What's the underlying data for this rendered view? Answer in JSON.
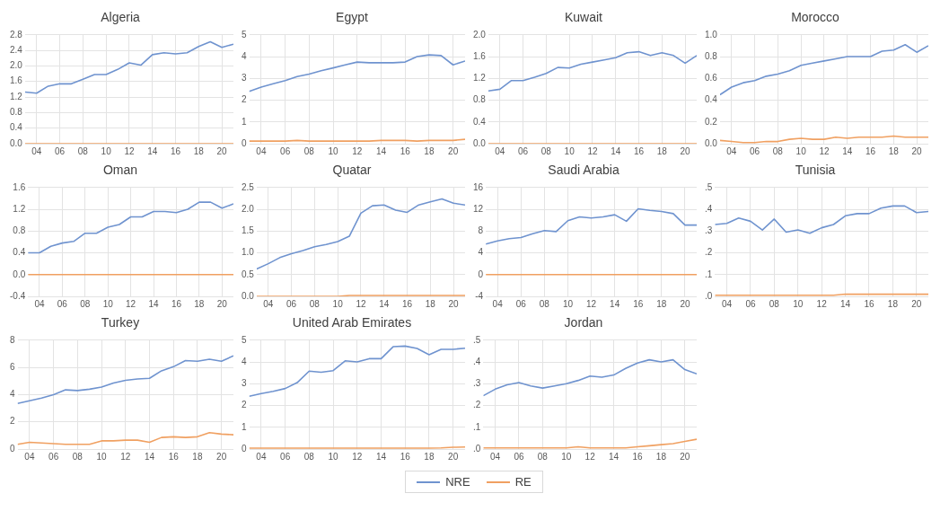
{
  "chart_data": [
    {
      "type": "line",
      "title": "Algeria",
      "x": [
        3,
        4,
        5,
        6,
        7,
        8,
        9,
        10,
        11,
        12,
        13,
        14,
        15,
        16,
        17,
        18,
        19,
        20,
        21
      ],
      "xlim": [
        3,
        21
      ],
      "xticks": [
        {
          "value": 4,
          "label": "04"
        },
        {
          "value": 6,
          "label": "06"
        },
        {
          "value": 8,
          "label": "08"
        },
        {
          "value": 10,
          "label": "10"
        },
        {
          "value": 12,
          "label": "12"
        },
        {
          "value": 14,
          "label": "14"
        },
        {
          "value": 16,
          "label": "16"
        },
        {
          "value": 18,
          "label": "18"
        },
        {
          "value": 20,
          "label": "20"
        }
      ],
      "ylim": [
        0,
        2.8
      ],
      "yticks": [
        {
          "value": 0,
          "label": "0.0"
        },
        {
          "value": 0.4,
          "label": "0.4"
        },
        {
          "value": 0.8,
          "label": "0.8"
        },
        {
          "value": 1.2,
          "label": "1.2"
        },
        {
          "value": 1.6,
          "label": "1.6"
        },
        {
          "value": 2,
          "label": "2.0"
        },
        {
          "value": 2.4,
          "label": "2.4"
        },
        {
          "value": 2.8,
          "label": "2.8"
        }
      ],
      "grid": true,
      "marker": "none",
      "line_style": "solid",
      "legend": "bottom",
      "series": [
        {
          "name": "NRE",
          "color": "#6f93cf",
          "values": [
            1.33,
            1.3,
            1.48,
            1.54,
            1.54,
            1.66,
            1.78,
            1.78,
            1.91,
            2.08,
            2.02,
            2.29,
            2.34,
            2.31,
            2.34,
            2.5,
            2.62,
            2.48,
            2.56
          ]
        },
        {
          "name": "RE",
          "color": "#f0a061",
          "values": [
            0,
            0,
            0,
            0,
            0,
            0,
            0,
            0,
            0,
            0,
            0,
            0,
            0,
            0,
            0,
            0,
            0,
            0,
            0
          ]
        }
      ]
    },
    {
      "type": "line",
      "title": "Egypt",
      "x": [
        3,
        4,
        5,
        6,
        7,
        8,
        9,
        10,
        11,
        12,
        13,
        14,
        15,
        16,
        17,
        18,
        19,
        20,
        21
      ],
      "xlim": [
        3,
        21
      ],
      "xticks": [
        {
          "value": 4,
          "label": "04"
        },
        {
          "value": 6,
          "label": "06"
        },
        {
          "value": 8,
          "label": "08"
        },
        {
          "value": 10,
          "label": "10"
        },
        {
          "value": 12,
          "label": "12"
        },
        {
          "value": 14,
          "label": "14"
        },
        {
          "value": 16,
          "label": "16"
        },
        {
          "value": 18,
          "label": "18"
        },
        {
          "value": 20,
          "label": "20"
        }
      ],
      "ylim": [
        0,
        5
      ],
      "yticks": [
        0,
        1,
        2,
        3,
        4,
        5
      ],
      "grid": true,
      "marker": "none",
      "line_style": "solid",
      "series": [
        {
          "color": "#6f93cf",
          "values": [
            2.4,
            2.6,
            2.75,
            2.9,
            3.08,
            3.2,
            3.35,
            3.48,
            3.62,
            3.75,
            3.72,
            3.72,
            3.72,
            3.75,
            4.0,
            4.08,
            4.05,
            3.62,
            3.8
          ]
        },
        {
          "color": "#f0a061",
          "values": [
            0.12,
            0.12,
            0.12,
            0.12,
            0.15,
            0.12,
            0.12,
            0.12,
            0.12,
            0.12,
            0.12,
            0.15,
            0.15,
            0.15,
            0.12,
            0.15,
            0.15,
            0.15,
            0.2
          ]
        }
      ]
    },
    {
      "type": "line",
      "title": "Kuwait",
      "x": [
        3,
        4,
        5,
        6,
        7,
        8,
        9,
        10,
        11,
        12,
        13,
        14,
        15,
        16,
        17,
        18,
        19,
        20,
        21
      ],
      "xlim": [
        3,
        21
      ],
      "xticks": [
        {
          "value": 4,
          "label": "04"
        },
        {
          "value": 6,
          "label": "06"
        },
        {
          "value": 8,
          "label": "08"
        },
        {
          "value": 10,
          "label": "10"
        },
        {
          "value": 12,
          "label": "12"
        },
        {
          "value": 14,
          "label": "14"
        },
        {
          "value": 16,
          "label": "16"
        },
        {
          "value": 18,
          "label": "18"
        },
        {
          "value": 20,
          "label": "20"
        }
      ],
      "ylim": [
        0,
        2
      ],
      "yticks": [
        {
          "value": 0,
          "label": "0.0"
        },
        {
          "value": 0.4,
          "label": "0.4"
        },
        {
          "value": 0.8,
          "label": "0.8"
        },
        {
          "value": 1.2,
          "label": "1.2"
        },
        {
          "value": 1.6,
          "label": "1.6"
        },
        {
          "value": 2,
          "label": "2.0"
        }
      ],
      "grid": true,
      "marker": "none",
      "line_style": "solid",
      "series": [
        {
          "color": "#6f93cf",
          "values": [
            0.97,
            1.0,
            1.16,
            1.16,
            1.22,
            1.29,
            1.4,
            1.39,
            1.46,
            1.5,
            1.54,
            1.58,
            1.67,
            1.69,
            1.62,
            1.67,
            1.62,
            1.48,
            1.62
          ]
        },
        {
          "color": "#f0a061",
          "values": [
            0,
            0,
            0,
            0,
            0,
            0,
            0,
            0,
            0,
            0,
            0,
            0,
            0,
            0,
            0,
            0,
            0,
            0,
            0
          ]
        }
      ]
    },
    {
      "type": "line",
      "title": "Morocco",
      "x": [
        3,
        4,
        5,
        6,
        7,
        8,
        9,
        10,
        11,
        12,
        13,
        14,
        15,
        16,
        17,
        18,
        19,
        20,
        21
      ],
      "xlim": [
        3,
        21
      ],
      "xticks": [
        {
          "value": 4,
          "label": "04"
        },
        {
          "value": 6,
          "label": "06"
        },
        {
          "value": 8,
          "label": "08"
        },
        {
          "value": 10,
          "label": "10"
        },
        {
          "value": 12,
          "label": "12"
        },
        {
          "value": 14,
          "label": "14"
        },
        {
          "value": 16,
          "label": "16"
        },
        {
          "value": 18,
          "label": "18"
        },
        {
          "value": 20,
          "label": "20"
        }
      ],
      "ylim": [
        0,
        1
      ],
      "yticks": [
        {
          "value": 0,
          "label": "0.0"
        },
        {
          "value": 0.2,
          "label": "0.2"
        },
        {
          "value": 0.4,
          "label": "0.4"
        },
        {
          "value": 0.6,
          "label": "0.6"
        },
        {
          "value": 0.8,
          "label": "0.8"
        },
        {
          "value": 1,
          "label": "1.0"
        }
      ],
      "grid": true,
      "marker": "none",
      "line_style": "solid",
      "series": [
        {
          "color": "#6f93cf",
          "values": [
            0.45,
            0.52,
            0.56,
            0.58,
            0.62,
            0.64,
            0.67,
            0.72,
            0.74,
            0.76,
            0.78,
            0.8,
            0.8,
            0.8,
            0.85,
            0.86,
            0.91,
            0.84,
            0.9
          ]
        },
        {
          "color": "#f0a061",
          "values": [
            0.03,
            0.02,
            0.01,
            0.01,
            0.02,
            0.02,
            0.04,
            0.05,
            0.04,
            0.04,
            0.06,
            0.05,
            0.06,
            0.06,
            0.06,
            0.07,
            0.06,
            0.06,
            0.06
          ]
        }
      ]
    },
    {
      "type": "line",
      "title": "Oman",
      "x": [
        3,
        4,
        5,
        6,
        7,
        8,
        9,
        10,
        11,
        12,
        13,
        14,
        15,
        16,
        17,
        18,
        19,
        20,
        21
      ],
      "xlim": [
        3,
        21
      ],
      "xticks": [
        {
          "value": 4,
          "label": "04"
        },
        {
          "value": 6,
          "label": "06"
        },
        {
          "value": 8,
          "label": "08"
        },
        {
          "value": 10,
          "label": "10"
        },
        {
          "value": 12,
          "label": "12"
        },
        {
          "value": 14,
          "label": "14"
        },
        {
          "value": 16,
          "label": "16"
        },
        {
          "value": 18,
          "label": "18"
        },
        {
          "value": 20,
          "label": "20"
        }
      ],
      "ylim": [
        -0.4,
        1.6
      ],
      "yticks": [
        {
          "value": -0.4,
          "label": "-0.4"
        },
        {
          "value": 0,
          "label": "0.0"
        },
        {
          "value": 0.4,
          "label": "0.4"
        },
        {
          "value": 0.8,
          "label": "0.8"
        },
        {
          "value": 1.2,
          "label": "1.2"
        },
        {
          "value": 1.6,
          "label": "1.6"
        }
      ],
      "grid": true,
      "marker": "none",
      "line_style": "solid",
      "series": [
        {
          "color": "#6f93cf",
          "values": [
            0.4,
            0.4,
            0.52,
            0.58,
            0.61,
            0.76,
            0.76,
            0.87,
            0.92,
            1.06,
            1.06,
            1.16,
            1.16,
            1.14,
            1.2,
            1.33,
            1.33,
            1.22,
            1.3
          ]
        },
        {
          "color": "#f0a061",
          "values": [
            0,
            0,
            0,
            0,
            0,
            0,
            0,
            0,
            0,
            0,
            0,
            0,
            0,
            0,
            0,
            0,
            0,
            0,
            0
          ]
        }
      ]
    },
    {
      "type": "line",
      "title": "Quatar",
      "x": [
        3,
        4,
        5,
        6,
        7,
        8,
        9,
        10,
        11,
        12,
        13,
        14,
        15,
        16,
        17,
        18,
        19,
        20,
        21
      ],
      "xlim": [
        3,
        21
      ],
      "xticks": [
        {
          "value": 4,
          "label": "04"
        },
        {
          "value": 6,
          "label": "06"
        },
        {
          "value": 8,
          "label": "08"
        },
        {
          "value": 10,
          "label": "10"
        },
        {
          "value": 12,
          "label": "12"
        },
        {
          "value": 14,
          "label": "14"
        },
        {
          "value": 16,
          "label": "16"
        },
        {
          "value": 18,
          "label": "18"
        },
        {
          "value": 20,
          "label": "20"
        }
      ],
      "ylim": [
        0,
        2.5
      ],
      "yticks": [
        {
          "value": 0,
          "label": "0.0"
        },
        {
          "value": 0.5,
          "label": "0.5"
        },
        {
          "value": 1,
          "label": "1.0"
        },
        {
          "value": 1.5,
          "label": "1.5"
        },
        {
          "value": 2,
          "label": "2.0"
        },
        {
          "value": 2.5,
          "label": "2.5"
        }
      ],
      "grid": true,
      "marker": "none",
      "line_style": "solid",
      "series": [
        {
          "color": "#6f93cf",
          "values": [
            0.63,
            0.75,
            0.89,
            0.98,
            1.05,
            1.14,
            1.19,
            1.26,
            1.38,
            1.91,
            2.08,
            2.1,
            1.98,
            1.93,
            2.1,
            2.17,
            2.24,
            2.14,
            2.1
          ]
        },
        {
          "color": "#f0a061",
          "values": [
            0,
            0,
            0,
            0,
            0,
            0,
            0,
            0,
            0.02,
            0.02,
            0.02,
            0.02,
            0.02,
            0.02,
            0.02,
            0.02,
            0.02,
            0.02,
            0.02
          ]
        }
      ]
    },
    {
      "type": "line",
      "title": "Saudi Arabia",
      "x": [
        3,
        4,
        5,
        6,
        7,
        8,
        9,
        10,
        11,
        12,
        13,
        14,
        15,
        16,
        17,
        18,
        19,
        20,
        21
      ],
      "xlim": [
        3,
        21
      ],
      "xticks": [
        {
          "value": 4,
          "label": "04"
        },
        {
          "value": 6,
          "label": "06"
        },
        {
          "value": 8,
          "label": "08"
        },
        {
          "value": 10,
          "label": "10"
        },
        {
          "value": 12,
          "label": "12"
        },
        {
          "value": 14,
          "label": "14"
        },
        {
          "value": 16,
          "label": "16"
        },
        {
          "value": 18,
          "label": "18"
        },
        {
          "value": 20,
          "label": "20"
        }
      ],
      "ylim": [
        -4,
        16
      ],
      "yticks": [
        -4,
        0,
        4,
        8,
        12,
        16
      ],
      "grid": true,
      "marker": "none",
      "line_style": "solid",
      "series": [
        {
          "color": "#6f93cf",
          "values": [
            5.6,
            6.2,
            6.6,
            6.8,
            7.5,
            8.1,
            7.9,
            9.9,
            10.6,
            10.4,
            10.6,
            11.0,
            9.8,
            12.1,
            11.8,
            11.6,
            11.2,
            9.1,
            9.1
          ]
        },
        {
          "color": "#f0a061",
          "values": [
            0,
            0,
            0,
            0,
            0,
            0,
            0,
            0,
            0,
            0,
            0,
            0,
            0,
            0,
            0,
            0,
            0,
            0,
            0
          ]
        }
      ]
    },
    {
      "type": "line",
      "title": "Tunisia",
      "x": [
        3,
        4,
        5,
        6,
        7,
        8,
        9,
        10,
        11,
        12,
        13,
        14,
        15,
        16,
        17,
        18,
        19,
        20,
        21
      ],
      "xlim": [
        3,
        21
      ],
      "xticks": [
        {
          "value": 4,
          "label": "04"
        },
        {
          "value": 6,
          "label": "06"
        },
        {
          "value": 8,
          "label": "08"
        },
        {
          "value": 10,
          "label": "10"
        },
        {
          "value": 12,
          "label": "12"
        },
        {
          "value": 14,
          "label": "14"
        },
        {
          "value": 16,
          "label": "16"
        },
        {
          "value": 18,
          "label": "18"
        },
        {
          "value": 20,
          "label": "20"
        }
      ],
      "ylim": [
        0,
        0.5
      ],
      "yticks": [
        {
          "value": 0,
          "label": ".0"
        },
        {
          "value": 0.1,
          "label": ".1"
        },
        {
          "value": 0.2,
          "label": ".2"
        },
        {
          "value": 0.3,
          "label": ".3"
        },
        {
          "value": 0.4,
          "label": ".4"
        },
        {
          "value": 0.5,
          "label": ".5"
        }
      ],
      "grid": true,
      "marker": "none",
      "line_style": "solid",
      "series": [
        {
          "color": "#6f93cf",
          "values": [
            0.33,
            0.335,
            0.36,
            0.345,
            0.305,
            0.355,
            0.295,
            0.305,
            0.29,
            0.315,
            0.33,
            0.37,
            0.38,
            0.38,
            0.405,
            0.415,
            0.415,
            0.385,
            0.39
          ]
        },
        {
          "color": "#f0a061",
          "values": [
            0.005,
            0.005,
            0.005,
            0.005,
            0.005,
            0.005,
            0.005,
            0.005,
            0.005,
            0.005,
            0.005,
            0.01,
            0.01,
            0.01,
            0.01,
            0.01,
            0.01,
            0.01,
            0.01
          ]
        }
      ]
    },
    {
      "type": "line",
      "title": "Turkey",
      "x": [
        3,
        4,
        5,
        6,
        7,
        8,
        9,
        10,
        11,
        12,
        13,
        14,
        15,
        16,
        17,
        18,
        19,
        20,
        21
      ],
      "xlim": [
        3,
        21
      ],
      "xticks": [
        {
          "value": 4,
          "label": "04"
        },
        {
          "value": 6,
          "label": "06"
        },
        {
          "value": 8,
          "label": "08"
        },
        {
          "value": 10,
          "label": "10"
        },
        {
          "value": 12,
          "label": "12"
        },
        {
          "value": 14,
          "label": "14"
        },
        {
          "value": 16,
          "label": "16"
        },
        {
          "value": 18,
          "label": "18"
        },
        {
          "value": 20,
          "label": "20"
        }
      ],
      "ylim": [
        0,
        8
      ],
      "yticks": [
        0,
        2,
        4,
        6,
        8
      ],
      "grid": true,
      "marker": "none",
      "line_style": "solid",
      "series": [
        {
          "color": "#6f93cf",
          "values": [
            3.35,
            3.55,
            3.75,
            4.0,
            4.35,
            4.3,
            4.4,
            4.55,
            4.85,
            5.05,
            5.15,
            5.2,
            5.75,
            6.05,
            6.5,
            6.45,
            6.6,
            6.45,
            6.85
          ]
        },
        {
          "color": "#f0a061",
          "values": [
            0.35,
            0.5,
            0.45,
            0.4,
            0.35,
            0.35,
            0.35,
            0.6,
            0.6,
            0.65,
            0.65,
            0.5,
            0.85,
            0.9,
            0.85,
            0.9,
            1.2,
            1.1,
            1.05
          ]
        }
      ]
    },
    {
      "type": "line",
      "title": "United Arab Emirates",
      "x": [
        3,
        4,
        5,
        6,
        7,
        8,
        9,
        10,
        11,
        12,
        13,
        14,
        15,
        16,
        17,
        18,
        19,
        20,
        21
      ],
      "xlim": [
        3,
        21
      ],
      "xticks": [
        {
          "value": 4,
          "label": "04"
        },
        {
          "value": 6,
          "label": "06"
        },
        {
          "value": 8,
          "label": "08"
        },
        {
          "value": 10,
          "label": "10"
        },
        {
          "value": 12,
          "label": "12"
        },
        {
          "value": 14,
          "label": "14"
        },
        {
          "value": 16,
          "label": "16"
        },
        {
          "value": 18,
          "label": "18"
        },
        {
          "value": 20,
          "label": "20"
        }
      ],
      "ylim": [
        0,
        5
      ],
      "yticks": [
        0,
        1,
        2,
        3,
        4,
        5
      ],
      "grid": true,
      "marker": "none",
      "line_style": "solid",
      "series": [
        {
          "color": "#6f93cf",
          "values": [
            2.42,
            2.55,
            2.65,
            2.78,
            3.05,
            3.58,
            3.53,
            3.6,
            4.05,
            4.0,
            4.15,
            4.15,
            4.7,
            4.73,
            4.62,
            4.33,
            4.58,
            4.58,
            4.63
          ]
        },
        {
          "color": "#f0a061",
          "values": [
            0.04,
            0.04,
            0.04,
            0.04,
            0.04,
            0.04,
            0.04,
            0.04,
            0.04,
            0.04,
            0.04,
            0.04,
            0.04,
            0.04,
            0.04,
            0.04,
            0.05,
            0.08,
            0.09
          ]
        }
      ]
    },
    {
      "type": "line",
      "title": "Jordan",
      "x": [
        3,
        4,
        5,
        6,
        7,
        8,
        9,
        10,
        11,
        12,
        13,
        14,
        15,
        16,
        17,
        18,
        19,
        20,
        21
      ],
      "xlim": [
        3,
        21
      ],
      "xticks": [
        {
          "value": 4,
          "label": "04"
        },
        {
          "value": 6,
          "label": "06"
        },
        {
          "value": 8,
          "label": "08"
        },
        {
          "value": 10,
          "label": "10"
        },
        {
          "value": 12,
          "label": "12"
        },
        {
          "value": 14,
          "label": "14"
        },
        {
          "value": 16,
          "label": "16"
        },
        {
          "value": 18,
          "label": "18"
        },
        {
          "value": 20,
          "label": "20"
        }
      ],
      "ylim": [
        0,
        0.5
      ],
      "yticks": [
        {
          "value": 0,
          "label": ".0"
        },
        {
          "value": 0.1,
          "label": ".1"
        },
        {
          "value": 0.2,
          "label": ".2"
        },
        {
          "value": 0.3,
          "label": ".3"
        },
        {
          "value": 0.4,
          "label": ".4"
        },
        {
          "value": 0.5,
          "label": ".5"
        }
      ],
      "grid": true,
      "marker": "none",
      "line_style": "solid",
      "series": [
        {
          "color": "#6f93cf",
          "values": [
            0.245,
            0.275,
            0.295,
            0.305,
            0.29,
            0.28,
            0.29,
            0.3,
            0.315,
            0.335,
            0.33,
            0.34,
            0.37,
            0.395,
            0.41,
            0.4,
            0.41,
            0.365,
            0.345
          ]
        },
        {
          "color": "#f0a061",
          "values": [
            0.005,
            0.005,
            0.005,
            0.005,
            0.005,
            0.005,
            0.005,
            0.005,
            0.01,
            0.005,
            0.005,
            0.005,
            0.005,
            0.01,
            0.015,
            0.02,
            0.025,
            0.035,
            0.045
          ]
        }
      ]
    }
  ]
}
